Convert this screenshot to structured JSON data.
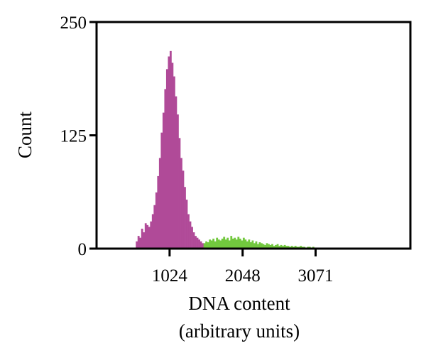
{
  "chart_data": {
    "type": "bar",
    "subtype": "histogram",
    "title": "",
    "xlabel": [
      "DNA content",
      "(arbitrary units)"
    ],
    "ylabel": "Count",
    "xlim": [
      0,
      4400
    ],
    "ylim": [
      0,
      250
    ],
    "x_ticks": [
      1024,
      2048,
      3071
    ],
    "y_ticks": [
      0,
      125,
      250
    ],
    "grid": false,
    "legend": "none",
    "bin_width": 25,
    "colors": {
      "primary_peak": "#b04a98",
      "tail": "#72c83e"
    },
    "series": [
      {
        "values_x": [
          550,
          575,
          600,
          625,
          650,
          675,
          700,
          725,
          750,
          775,
          800,
          825,
          850,
          875,
          900,
          925,
          950,
          975,
          1000,
          1025,
          1050,
          1075,
          1100,
          1125,
          1150,
          1175,
          1200,
          1225,
          1250,
          1275,
          1300,
          1325,
          1350,
          1375,
          1400,
          1425,
          1450,
          1475
        ],
        "values_y": [
          8,
          14,
          12,
          22,
          18,
          28,
          26,
          24,
          30,
          38,
          48,
          62,
          80,
          100,
          128,
          150,
          176,
          198,
          212,
          218,
          205,
          190,
          168,
          148,
          122,
          100,
          86,
          68,
          54,
          38,
          30,
          24,
          18,
          14,
          12,
          10,
          8,
          6
        ]
      },
      {
        "values_x": [
          1500,
          1525,
          1550,
          1575,
          1600,
          1625,
          1650,
          1675,
          1700,
          1725,
          1750,
          1775,
          1800,
          1825,
          1850,
          1875,
          1900,
          1925,
          1950,
          1975,
          2000,
          2025,
          2050,
          2075,
          2100,
          2125,
          2150,
          2175,
          2200,
          2225,
          2250,
          2275,
          2300,
          2325,
          2350,
          2375,
          2400,
          2425,
          2450,
          2475,
          2500,
          2525,
          2550,
          2575,
          2600,
          2625,
          2650,
          2675,
          2700,
          2725,
          2750,
          2775,
          2800,
          2825,
          2850,
          2875,
          2900,
          2925,
          2950,
          2975,
          3000,
          3025,
          3050,
          3075,
          3100
        ],
        "values_y": [
          6,
          8,
          7,
          10,
          9,
          11,
          8,
          12,
          10,
          9,
          11,
          13,
          10,
          12,
          9,
          14,
          11,
          12,
          10,
          13,
          11,
          9,
          12,
          10,
          8,
          10,
          7,
          9,
          6,
          8,
          5,
          7,
          6,
          5,
          4,
          6,
          5,
          4,
          5,
          3,
          4,
          5,
          3,
          4,
          3,
          4,
          3,
          3,
          2,
          3,
          2,
          3,
          2,
          2,
          3,
          2,
          2,
          1,
          2,
          2,
          1,
          2,
          1,
          1,
          1
        ]
      }
    ]
  }
}
